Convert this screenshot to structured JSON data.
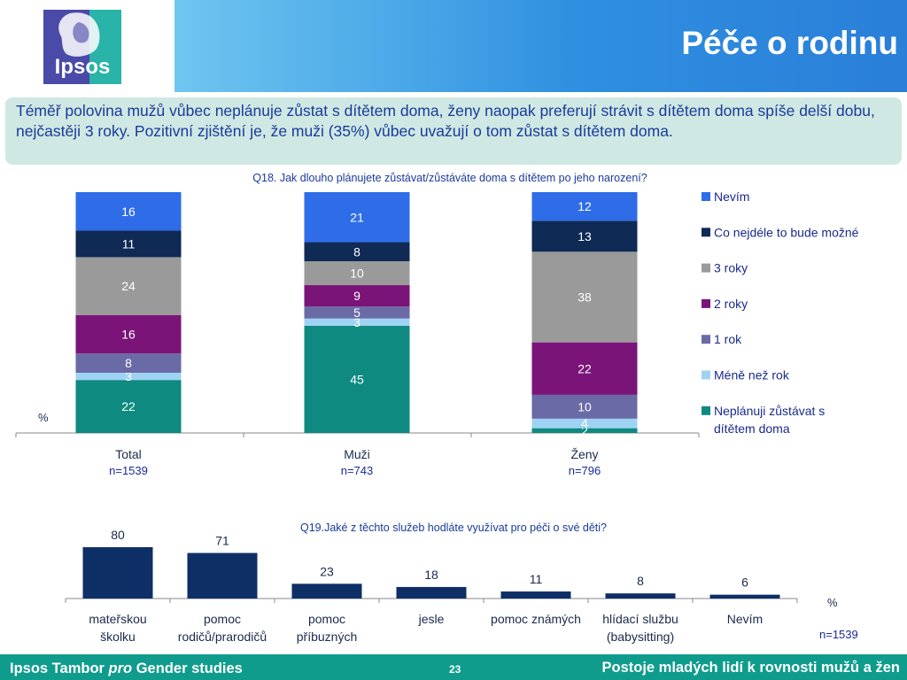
{
  "header": {
    "title": "Péče o rodinu",
    "logo_text": "Ipsos",
    "colors": {
      "logo_bg": "#4a4aa8",
      "logo_accent": "#2ab3a8"
    }
  },
  "intro": {
    "text": "Téměř polovina mužů vůbec neplánuje zůstat s dítětem doma, ženy naopak preferují strávit s dítětem doma spíše delší dobu, nejčastěji 3 roky. Pozitivní zjištění je, že muži (35%) vůbec uvažují o tom zůstat s dítětem doma."
  },
  "footer": {
    "left_prefix": "Ipsos Tambor ",
    "left_italic": "pro",
    "left_suffix": " Gender studies",
    "page": "23",
    "right": "Postoje mladých lidí k rovnosti mužů a žen"
  },
  "chart_data": [
    {
      "type": "bar",
      "stacked": true,
      "question": "Q18. Jak dlouho plánujete zůstávat/zůstáváte doma s dítětem po jeho narození?",
      "unit_label": "%",
      "categories": [
        "Total",
        "Muži",
        "Ženy"
      ],
      "sample_sizes": [
        "n=1539",
        "n=743",
        "n=796"
      ],
      "series": [
        {
          "name": "Neplánuji zůstávat s dítětem doma",
          "color": "#0f8a80",
          "values": [
            22,
            45,
            2
          ]
        },
        {
          "name": "Méně než rok",
          "color": "#9fd3f3",
          "values": [
            3,
            3,
            4
          ]
        },
        {
          "name": "1 rok",
          "color": "#6a6aa6",
          "values": [
            8,
            5,
            10
          ]
        },
        {
          "name": "2 roky",
          "color": "#7a1478",
          "values": [
            16,
            9,
            22
          ]
        },
        {
          "name": "3 roky",
          "color": "#9a9a9a",
          "values": [
            24,
            10,
            38
          ]
        },
        {
          "name": "Co nejdéle to bude možné",
          "color": "#0e2a55",
          "values": [
            11,
            8,
            13
          ]
        },
        {
          "name": "Nevím",
          "color": "#2f6ce8",
          "values": [
            16,
            21,
            12
          ]
        }
      ],
      "legend_position": "right",
      "legend_order": [
        "Nevím",
        "Co nejdéle to bude možné",
        "3 roky",
        "2 roky",
        "1 rok",
        "Méně než rok",
        "Neplánuji zůstávat s dítětem doma"
      ],
      "ylim": [
        0,
        100
      ]
    },
    {
      "type": "bar",
      "question": "Q19.Jaké z těchto služeb hodláte využívat pro péči o své děti?",
      "unit_label": "%",
      "sample_size": "n=1539",
      "bar_color": "#0e2f66",
      "categories": [
        "mateřskou školku",
        "pomoc rodičů/prarodičů",
        "pomoc příbuzných",
        "jesle",
        "pomoc známých",
        "hlídací službu (babysitting)",
        "Nevím"
      ],
      "values": [
        80,
        71,
        23,
        18,
        11,
        8,
        6
      ],
      "ylim": [
        0,
        100
      ]
    }
  ]
}
